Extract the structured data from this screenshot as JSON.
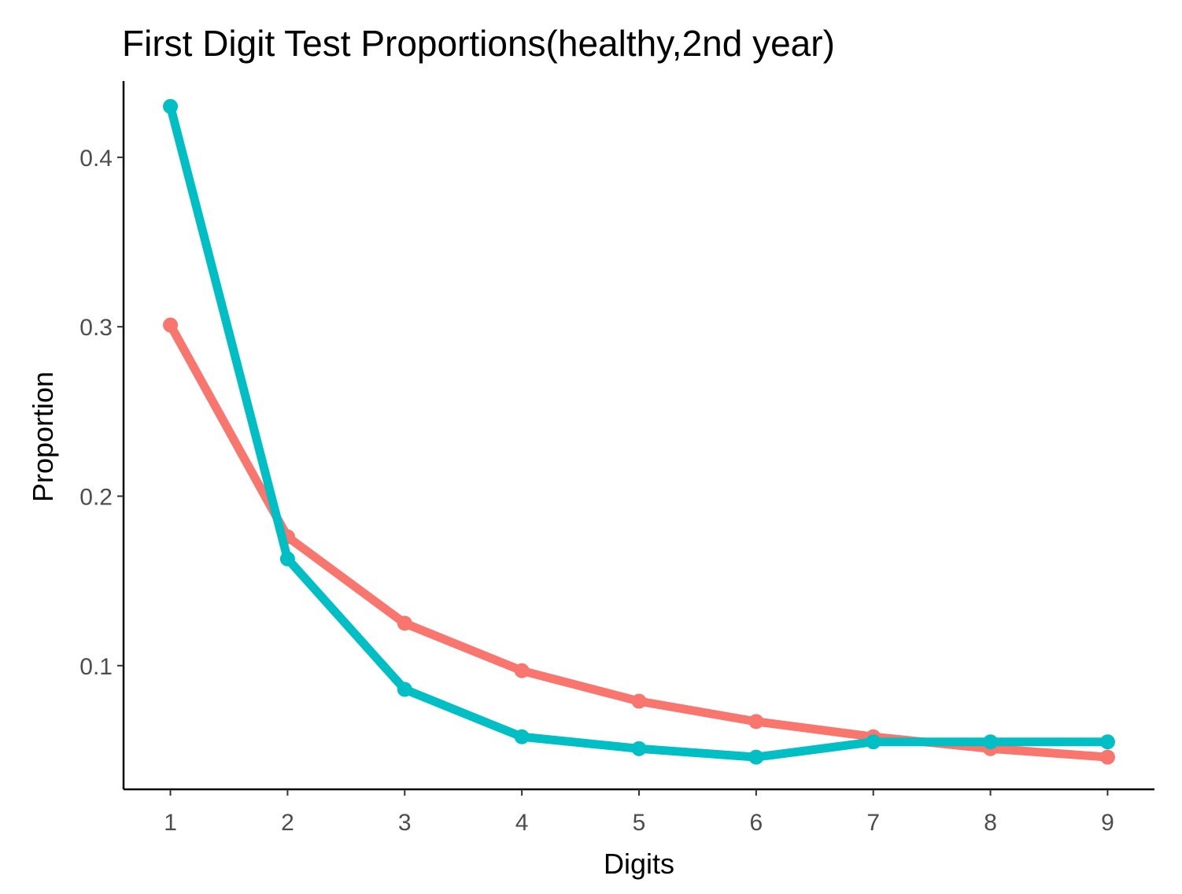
{
  "chart_data": {
    "type": "line",
    "title": "First Digit Test Proportions(healthy,2nd year)",
    "xlabel": "Digits",
    "ylabel": "Proportion",
    "x": [
      1,
      2,
      3,
      4,
      5,
      6,
      7,
      8,
      9
    ],
    "xlim": [
      0.6,
      9.4
    ],
    "ylim": [
      0.027,
      0.445
    ],
    "yticks": [
      0.1,
      0.2,
      0.3,
      0.4
    ],
    "ytick_labels": [
      "0.1",
      "0.2",
      "0.3",
      "0.4"
    ],
    "xtick_labels": [
      "1",
      "2",
      "3",
      "4",
      "5",
      "6",
      "7",
      "8",
      "9"
    ],
    "grid": false,
    "legend": "none",
    "series": [
      {
        "color": "#F8766D",
        "values": [
          0.301,
          0.176,
          0.125,
          0.097,
          0.079,
          0.067,
          0.058,
          0.051,
          0.046
        ]
      },
      {
        "color": "#00BFC4",
        "values": [
          0.43,
          0.163,
          0.086,
          0.058,
          0.051,
          0.046,
          0.055,
          0.055,
          0.055
        ]
      }
    ]
  }
}
